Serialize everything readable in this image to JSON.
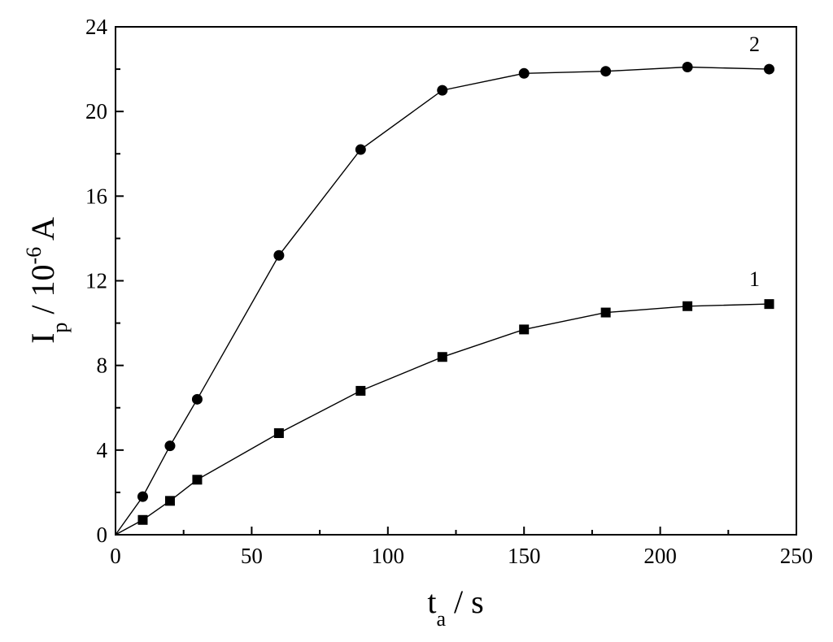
{
  "chart_data": {
    "type": "line",
    "title": "",
    "xlabel": {
      "main": "t",
      "sub": "a",
      "unit": " / s"
    },
    "ylabel": {
      "main": "I",
      "sub": "p",
      "mid": " / 10",
      "sup": "-6",
      "unit": " A"
    },
    "xlim": [
      0,
      250
    ],
    "ylim": [
      0,
      24
    ],
    "xticks": [
      0,
      50,
      100,
      150,
      200,
      250
    ],
    "yticks": [
      0,
      4,
      8,
      12,
      16,
      20,
      24
    ],
    "grid": false,
    "series": [
      {
        "name": "1",
        "marker": "square",
        "color": "#000000",
        "x": [
          0,
          10,
          20,
          30,
          60,
          90,
          120,
          150,
          180,
          210,
          240
        ],
        "y": [
          0,
          0.7,
          1.6,
          2.6,
          4.8,
          6.8,
          8.4,
          9.7,
          10.5,
          10.8,
          10.9
        ]
      },
      {
        "name": "2",
        "marker": "circle",
        "color": "#000000",
        "x": [
          0,
          10,
          20,
          30,
          60,
          90,
          120,
          150,
          180,
          210,
          240
        ],
        "y": [
          0,
          1.8,
          4.2,
          6.4,
          13.2,
          18.2,
          21.0,
          21.8,
          21.9,
          22.1,
          22.0
        ]
      }
    ]
  }
}
